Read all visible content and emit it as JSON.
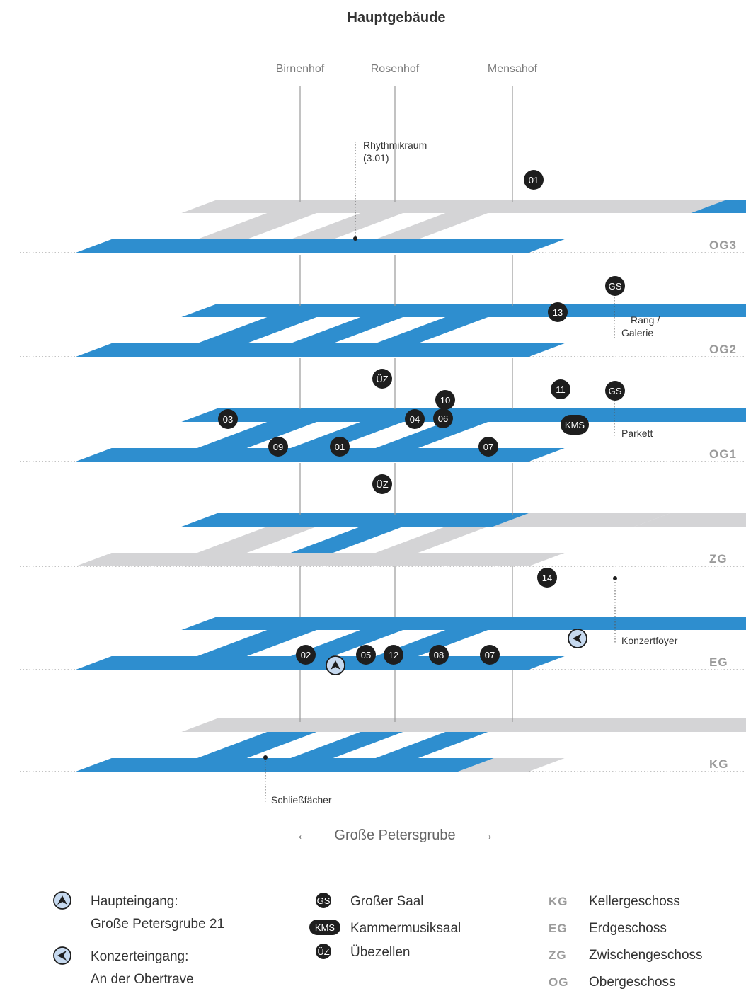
{
  "title": "Hauptgebäude",
  "courtyards": [
    "Birnenhof",
    "Rosenhof",
    "Mensahof"
  ],
  "colors": {
    "active": "#2e8ecf",
    "inactive": "#d4d4d6",
    "marker": "#1e1e1e",
    "entrance_fill": "#c6d9ef",
    "floor_label": "#9a9a9a"
  },
  "floors": [
    {
      "code": "OG3",
      "label": "OG3"
    },
    {
      "code": "OG2",
      "label": "OG2"
    },
    {
      "code": "OG1",
      "label": "OG1"
    },
    {
      "code": "ZG",
      "label": "ZG"
    },
    {
      "code": "EG",
      "label": "EG"
    },
    {
      "code": "KG",
      "label": "KG"
    }
  ],
  "markers": {
    "OG3": [
      "01"
    ],
    "OG2": [
      "GS",
      "13"
    ],
    "OG1": [
      "ÜZ",
      "10",
      "11",
      "GS",
      "03",
      "04",
      "06",
      "KMS",
      "09",
      "01",
      "07"
    ],
    "ZG": [
      "ÜZ"
    ],
    "EG": [
      "14",
      "02",
      "05",
      "12",
      "08",
      "07"
    ],
    "KG": []
  },
  "annotations": {
    "og3_room": [
      "Rhythmikraum",
      "(3.01)"
    ],
    "og2_room": [
      "Rang /",
      "Galerie"
    ],
    "og1_room": [
      "Parkett"
    ],
    "eg_room": [
      "Konzertfoyer"
    ],
    "kg_room": [
      "Schließfächer"
    ]
  },
  "street": {
    "left_arrow": "←",
    "name": "Große Petersgrube",
    "right_arrow": "→"
  },
  "legend": {
    "entrances": [
      {
        "icon": "entrance-main-icon",
        "lines": [
          "Haupteingang:",
          "Große Petersgrube 21"
        ]
      },
      {
        "icon": "entrance-concert-icon",
        "lines": [
          "Konzerteingang:",
          "An der Obertrave"
        ]
      }
    ],
    "rooms": [
      {
        "code": "GS",
        "label": "Großer Saal"
      },
      {
        "code": "KMS",
        "label": "Kammermusiksaal"
      },
      {
        "code": "ÜZ",
        "label": "Übezellen"
      }
    ],
    "floor_codes": [
      {
        "code": "KG",
        "label": "Kellergeschoss"
      },
      {
        "code": "EG",
        "label": "Erdgeschoss"
      },
      {
        "code": "ZG",
        "label": "Zwischengeschoss"
      },
      {
        "code": "OG",
        "label": "Obergeschoss"
      }
    ]
  }
}
